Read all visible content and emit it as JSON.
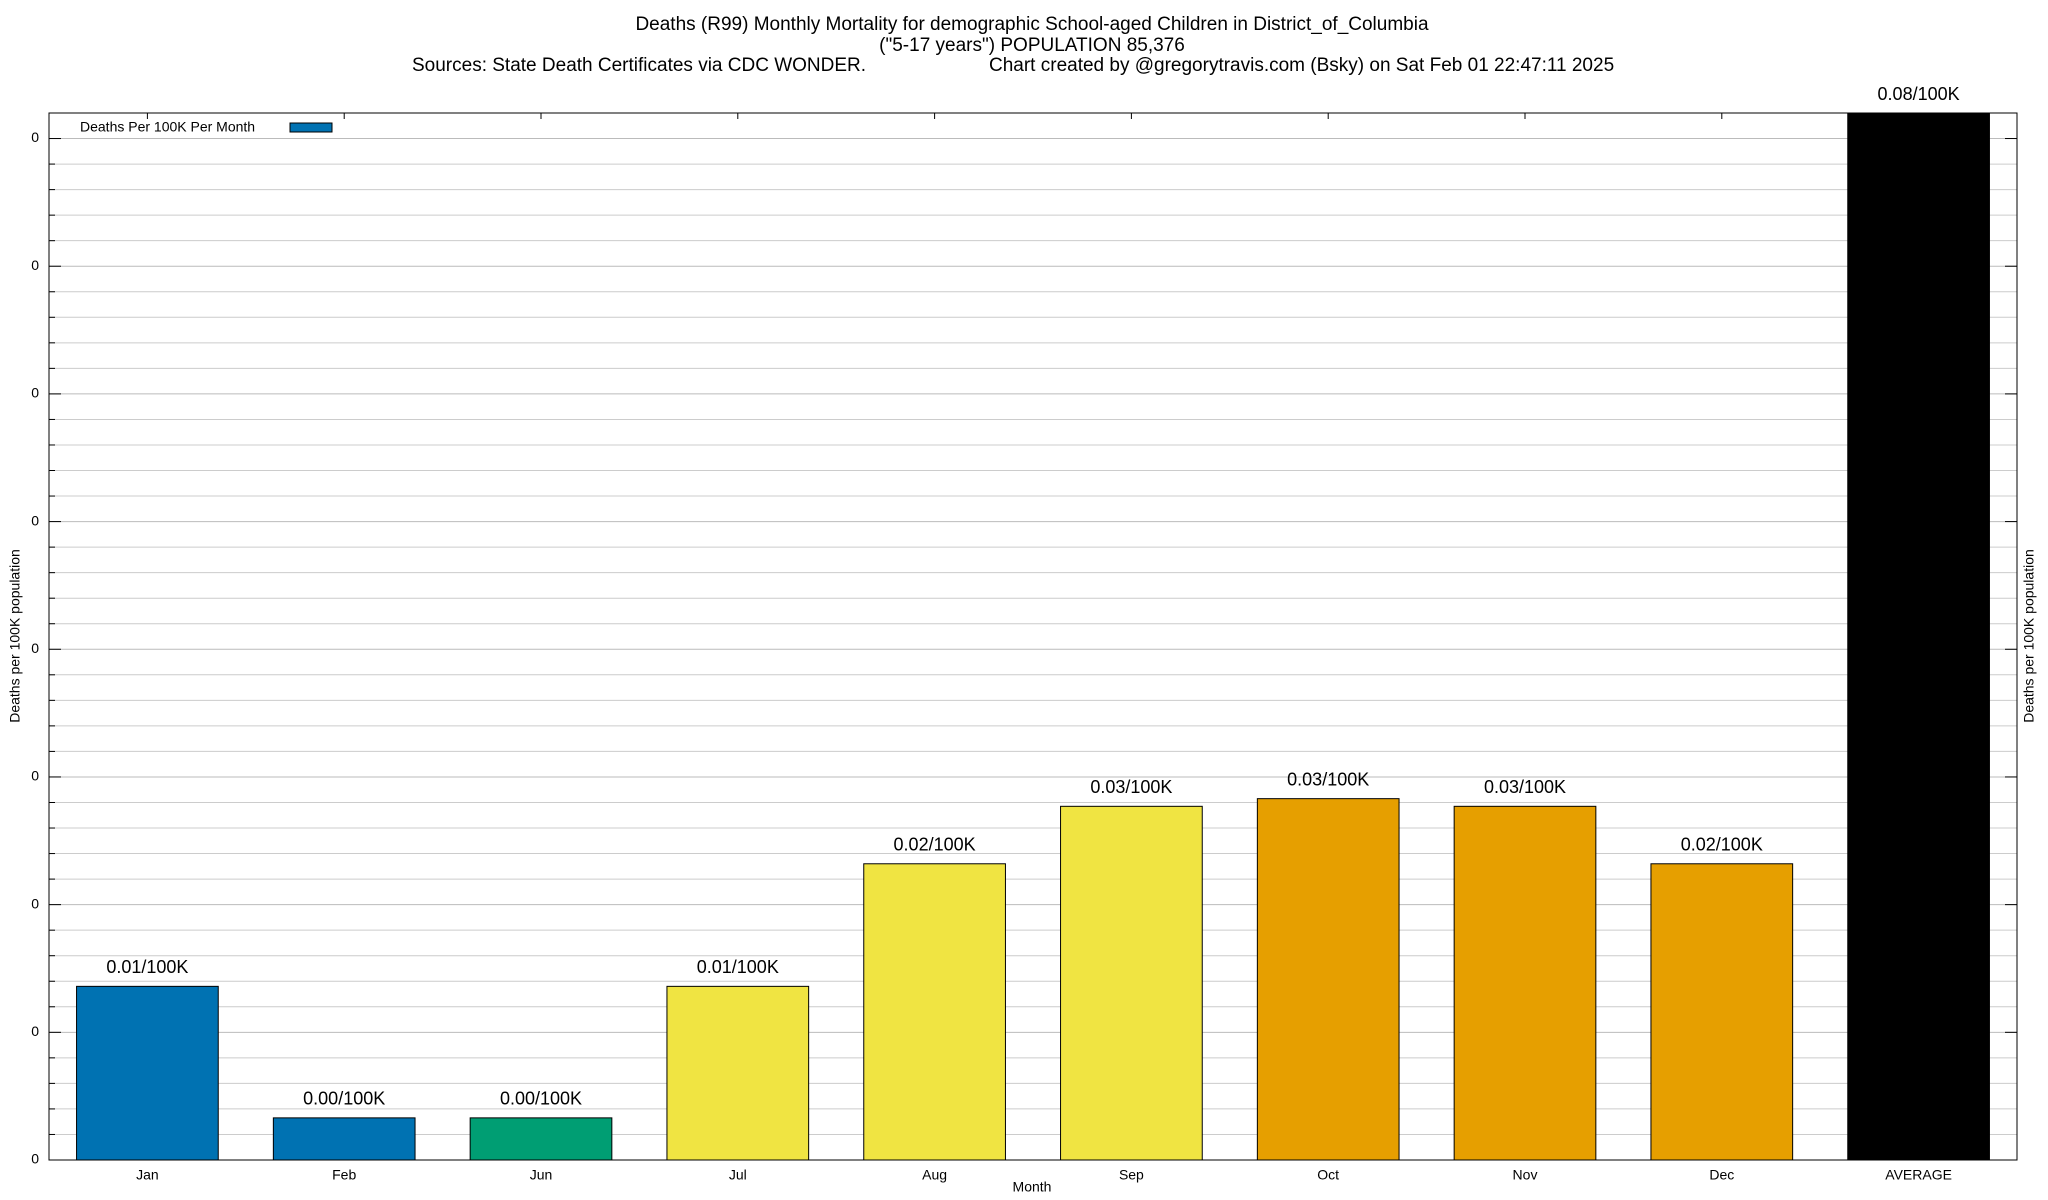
{
  "chart_data": {
    "type": "bar",
    "title": "Deaths (R99) Monthly Mortality for demographic School-aged Children in District_of_Columbia",
    "subtitle": "(\"5-17 years\") POPULATION 85,376",
    "source": "Sources: State Death Certificates via CDC WONDER.",
    "credit": "Chart created by @gregorytravis.com (Bsky) on Sat Feb 01 22:47:11 2025",
    "x_label": "Month",
    "y_label": "Deaths per 100K population",
    "y2_label": "Deaths per 100K population",
    "categories": [
      "Jan",
      "Feb",
      "Jun",
      "Jul",
      "Aug",
      "Sep",
      "Oct",
      "Nov",
      "Dec",
      "AVERAGE"
    ],
    "series": [
      {
        "name": "Deaths Per 100K Per Month",
        "color": "#0072b2",
        "values": [
          0.0136,
          0.0033,
          0.0033,
          0.0136,
          0.0232,
          0.0277,
          0.0283,
          0.0277,
          0.0232,
          0.082
        ],
        "value_labels": [
          "0.01/100K",
          "0.00/100K",
          "0.00/100K",
          "0.01/100K",
          "0.02/100K",
          "0.03/100K",
          "0.03/100K",
          "0.03/100K",
          "0.02/100K",
          "0.08/100K"
        ],
        "colors": [
          "#0072b2",
          "#0072b2",
          "#009e73",
          "#f0e442",
          "#f0e442",
          "#f0e442",
          "#e69f00",
          "#e69f00",
          "#e69f00",
          "#000000"
        ]
      }
    ],
    "ylim": [
      0,
      0.082
    ],
    "yticks": [
      {
        "value": 0,
        "label": "0"
      },
      {
        "value": 0.01,
        "label": "0"
      },
      {
        "value": 0.02,
        "label": "0"
      },
      {
        "value": 0.03,
        "label": "0"
      },
      {
        "value": 0.04,
        "label": "0"
      },
      {
        "value": 0.05,
        "label": "0"
      },
      {
        "value": 0.06,
        "label": "0"
      },
      {
        "value": 0.07,
        "label": "0"
      },
      {
        "value": 0.08,
        "label": "0"
      }
    ],
    "grid": true,
    "minor_subdivisions": 5,
    "legend": "top-left"
  }
}
